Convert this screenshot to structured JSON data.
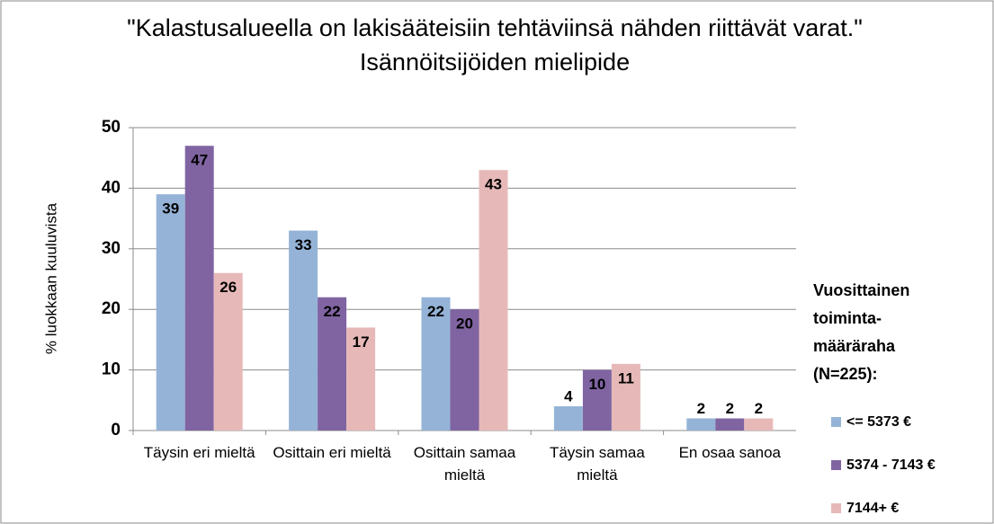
{
  "chart_data": {
    "type": "bar",
    "title": "\"Kalastusalueella on lakisääteisiin tehtäviinsä nähden riittävät varat.\" Isännöitsijöiden mielipide",
    "y_label": "% luokkaan kuuluvista",
    "categories": [
      "Täysin eri mieltä",
      "Osittain eri mieltä",
      "Osittain samaa mieltä",
      "Täysin samaa mieltä",
      "En osaa sanoa"
    ],
    "legend_title": "Vuosittainen toiminta-määräraha (N=225):",
    "series": [
      {
        "name": "<= 5373 €",
        "color": "#95b3d7",
        "values": [
          39,
          33,
          22,
          4,
          2
        ]
      },
      {
        "name": "5374 - 7143 €",
        "color": "#8064a2",
        "values": [
          47,
          22,
          20,
          10,
          2
        ]
      },
      {
        "name": "7144+ €",
        "color": "#e6b9b8",
        "values": [
          26,
          17,
          43,
          11,
          2
        ]
      }
    ],
    "ylim": [
      0,
      50
    ],
    "yticks": [
      0,
      10,
      20,
      30,
      40,
      50
    ],
    "grid": true,
    "legend": "right"
  }
}
